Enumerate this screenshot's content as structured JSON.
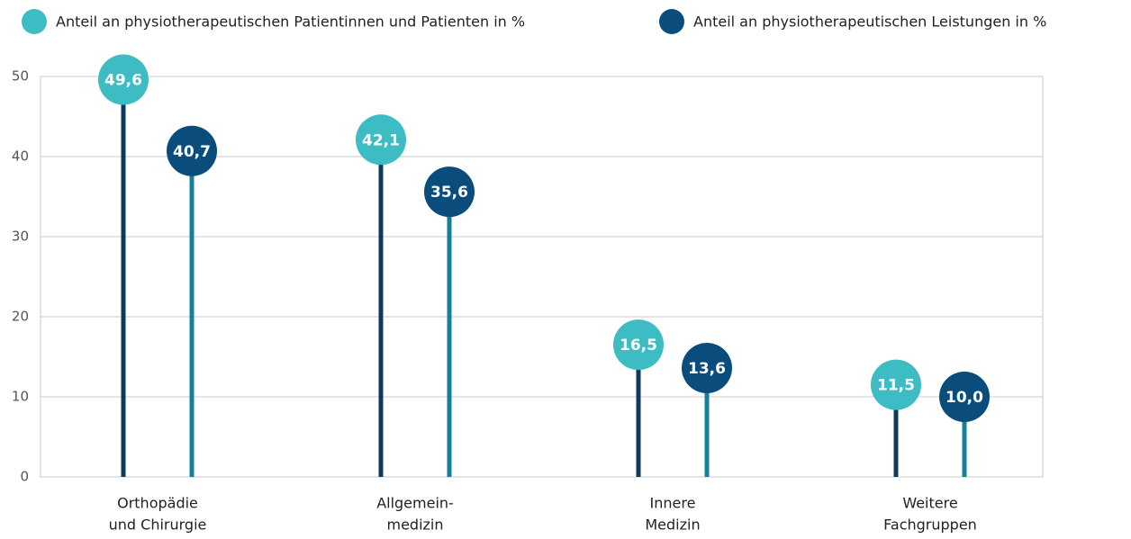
{
  "chart_data": {
    "type": "lollipop",
    "categories": [
      [
        "Orthopädie",
        "und Chirurgie"
      ],
      [
        "Allgemein-",
        "medizin"
      ],
      [
        "Innere",
        "Medizin"
      ],
      [
        "Weitere",
        "Fachgruppen"
      ]
    ],
    "series": [
      {
        "name": "Anteil an physiotherapeutischen Patientinnen und Patienten in %",
        "color": "#3dbcc4",
        "stem_color": "#0e3a5e",
        "values": [
          49.6,
          42.1,
          16.5,
          11.5
        ],
        "value_labels": [
          "49,6",
          "42,1",
          "16,5",
          "11,5"
        ]
      },
      {
        "name": "Anteil an physiotherapeutischen Leistungen in %",
        "color": "#0a4d7d",
        "stem_color": "#16809b",
        "values": [
          40.7,
          35.6,
          13.6,
          10.0
        ],
        "value_labels": [
          "40,7",
          "35,6",
          "13,6",
          "10,0"
        ]
      }
    ],
    "ylim": [
      0,
      50
    ],
    "yticks": [
      0,
      10,
      20,
      30,
      40,
      50
    ],
    "grid": true,
    "legend": "top"
  }
}
